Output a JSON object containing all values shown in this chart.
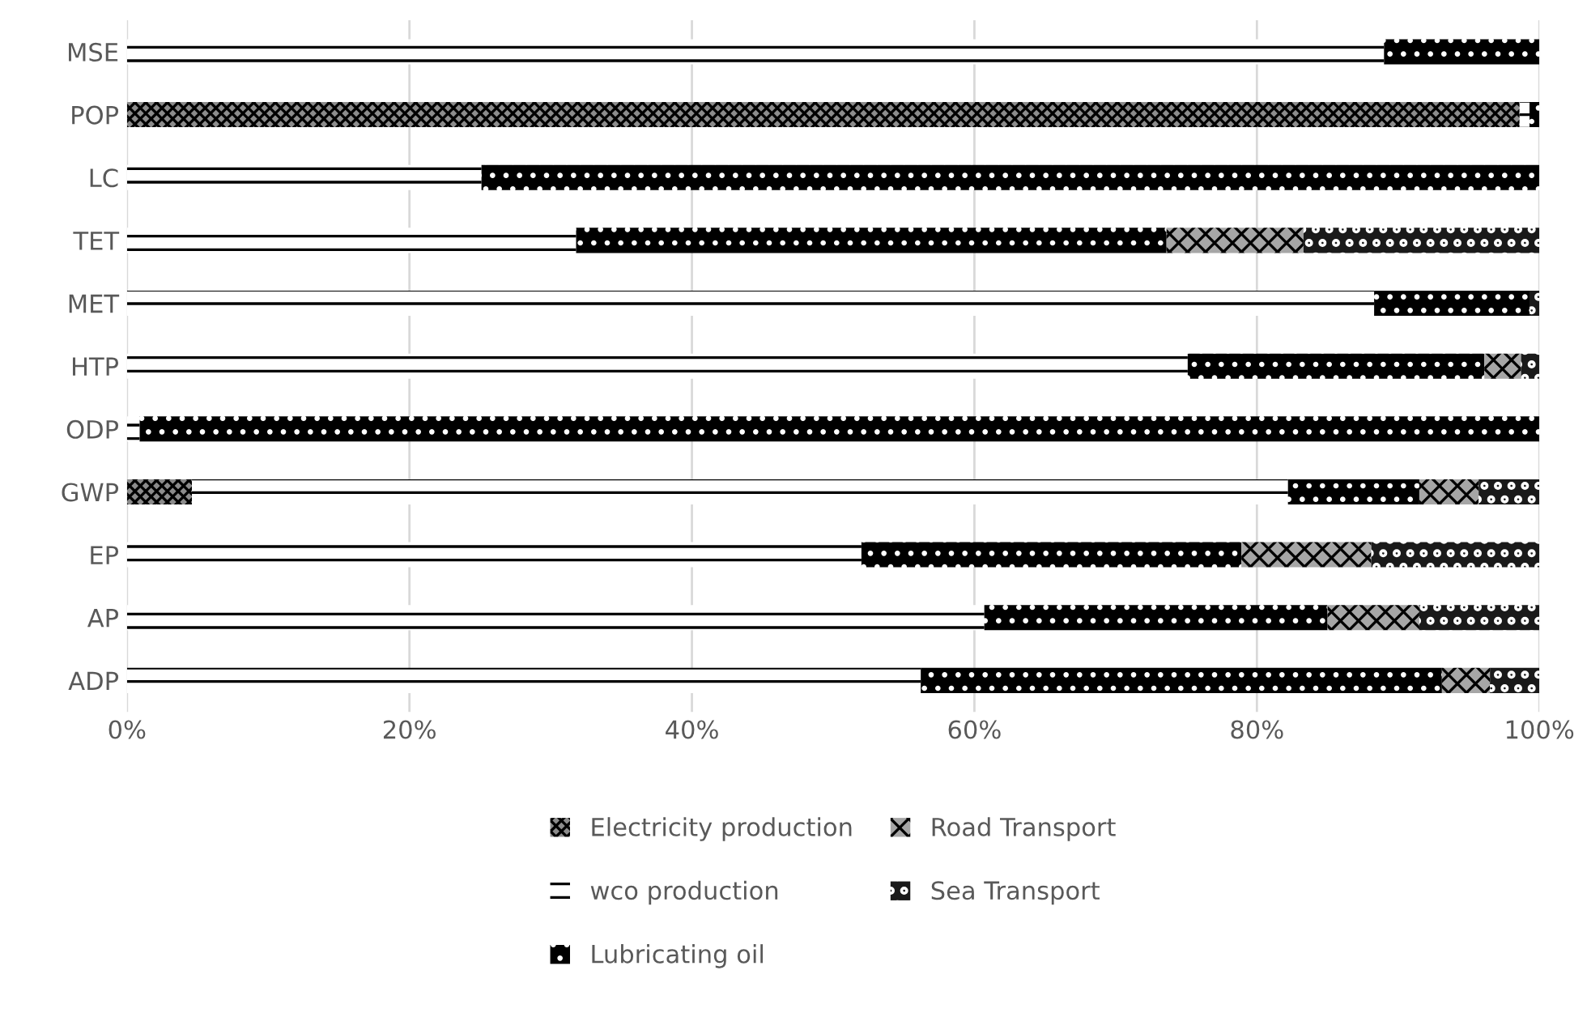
{
  "chart_data": {
    "type": "bar",
    "orientation": "horizontal",
    "stacked": true,
    "categories": [
      "MSE",
      "POP",
      "LC",
      "TET",
      "MET",
      "HTP",
      "ODP",
      "GWP",
      "EP",
      "AP",
      "ADP"
    ],
    "series": [
      {
        "name": "Electricity production",
        "color": "#8c8c8c",
        "values": [
          0,
          98.6,
          0,
          0,
          0,
          0,
          0,
          4.6,
          0,
          0,
          0
        ]
      },
      {
        "name": "wco production",
        "color": "#ffffff",
        "values": [
          89.0,
          0.7,
          25.1,
          31.8,
          88.3,
          75.1,
          0.9,
          77.6,
          52.0,
          60.7,
          56.2
        ]
      },
      {
        "name": "Lubricating oil",
        "color": "#000000",
        "values": [
          11.0,
          0.7,
          74.9,
          41.8,
          11.0,
          21.0,
          99.1,
          9.3,
          26.9,
          24.3,
          36.9
        ]
      },
      {
        "name": "Road Transport",
        "color": "#a6a6a6",
        "values": [
          0,
          0,
          0,
          9.7,
          0,
          2.6,
          0,
          4.2,
          9.2,
          6.5,
          3.4
        ]
      },
      {
        "name": "Sea Transport",
        "color": "#1a1a1a",
        "values": [
          0,
          0,
          0,
          16.7,
          0.7,
          1.3,
          0,
          4.3,
          11.9,
          8.5,
          3.5
        ]
      }
    ],
    "xlim": [
      0,
      100
    ],
    "xticks": [
      {
        "value": 0,
        "label": "0%"
      },
      {
        "value": 20,
        "label": "20%"
      },
      {
        "value": 40,
        "label": "40%"
      },
      {
        "value": 60,
        "label": "60%"
      },
      {
        "value": 80,
        "label": "80%"
      },
      {
        "value": 100,
        "label": "100%"
      }
    ],
    "grid": "x",
    "legend": "bottom"
  }
}
